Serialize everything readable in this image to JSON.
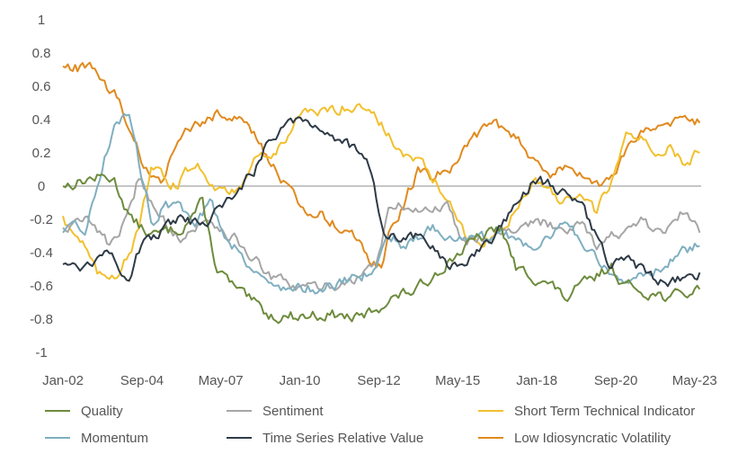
{
  "chart_data": {
    "type": "line",
    "title": "",
    "xlabel": "",
    "ylabel": "",
    "ylim": [
      -1,
      1
    ],
    "xlim": [
      2002.0,
      2023.55
    ],
    "y_ticks": [
      1,
      0.8,
      0.6,
      0.4,
      0.2,
      0,
      -0.2,
      -0.4,
      -0.6,
      -0.8,
      -1
    ],
    "y_tick_labels": [
      "1",
      "0.8",
      "0.6",
      "0.4",
      "0.2",
      "0",
      "-0.2",
      "-0.4",
      "-0.6",
      "-0.8",
      "-1"
    ],
    "x_ticks": [
      {
        "label": "Jan-02",
        "t": 2002.0
      },
      {
        "label": "Sep-04",
        "t": 2004.67
      },
      {
        "label": "May-07",
        "t": 2007.33
      },
      {
        "label": "Jan-10",
        "t": 2010.0
      },
      {
        "label": "Sep-12",
        "t": 2012.67
      },
      {
        "label": "May-15",
        "t": 2015.33
      },
      {
        "label": "Jan-18",
        "t": 2018.0
      },
      {
        "label": "Sep-20",
        "t": 2020.67
      },
      {
        "label": "May-23",
        "t": 2023.33
      }
    ],
    "legend_position": "bottom",
    "series": [
      {
        "name": "Quality",
        "color": "#6E8B3D",
        "t": [
          2002.0,
          2003.0,
          2003.7,
          2004.3,
          2005.0,
          2006.0,
          2006.7,
          2007.2,
          2008.0,
          2009.0,
          2010.0,
          2011.0,
          2012.0,
          2012.5,
          2013.0,
          2014.0,
          2015.0,
          2015.5,
          2016.0,
          2016.8,
          2017.3,
          2018.0,
          2018.5,
          2019.0,
          2019.5,
          2020.0,
          2020.5,
          2021.0,
          2021.5,
          2022.0,
          2022.5,
          2023.0,
          2023.5
        ],
        "values": [
          0.0,
          0.05,
          0.05,
          -0.2,
          -0.3,
          -0.25,
          -0.1,
          -0.5,
          -0.65,
          -0.78,
          -0.78,
          -0.77,
          -0.8,
          -0.75,
          -0.68,
          -0.62,
          -0.45,
          -0.38,
          -0.32,
          -0.25,
          -0.5,
          -0.55,
          -0.6,
          -0.68,
          -0.6,
          -0.55,
          -0.48,
          -0.6,
          -0.62,
          -0.65,
          -0.67,
          -0.65,
          -0.62
        ]
      },
      {
        "name": "Sentiment",
        "color": "#A6A6A6",
        "t": [
          2002.0,
          2003.0,
          2003.5,
          2004.2,
          2004.6,
          2005.2,
          2006.0,
          2007.0,
          2008.0,
          2009.0,
          2010.0,
          2011.0,
          2012.0,
          2012.6,
          2013.0,
          2013.5,
          2014.0,
          2015.0,
          2015.5,
          2016.5,
          2017.0,
          2018.0,
          2019.0,
          2019.5,
          2020.0,
          2020.5,
          2021.0,
          2021.5,
          2022.0,
          2022.5,
          2023.0,
          2023.5
        ],
        "values": [
          -0.25,
          -0.2,
          -0.35,
          -0.2,
          0.08,
          -0.2,
          -0.3,
          -0.2,
          -0.35,
          -0.55,
          -0.62,
          -0.6,
          -0.55,
          -0.45,
          -0.15,
          -0.12,
          -0.15,
          -0.12,
          -0.32,
          -0.3,
          -0.25,
          -0.22,
          -0.25,
          -0.2,
          -0.35,
          -0.3,
          -0.28,
          -0.22,
          -0.28,
          -0.25,
          -0.15,
          -0.28
        ]
      },
      {
        "name": "Short Term Technical Indicator",
        "color": "#F2C02E",
        "t": [
          2002.0,
          2002.7,
          2003.2,
          2003.8,
          2004.5,
          2005.0,
          2005.8,
          2006.5,
          2007.2,
          2007.8,
          2008.5,
          2009.0,
          2009.5,
          2010.0,
          2011.0,
          2012.0,
          2012.5,
          2013.0,
          2013.5,
          2014.0,
          2014.5,
          2015.0,
          2015.5,
          2016.0,
          2017.0,
          2017.5,
          2018.0,
          2018.5,
          2019.0,
          2019.5,
          2020.0,
          2020.5,
          2021.0,
          2021.5,
          2022.0,
          2022.5,
          2023.0,
          2023.5
        ],
        "values": [
          -0.18,
          -0.35,
          -0.55,
          -0.52,
          -0.3,
          0.1,
          0.0,
          0.15,
          0.0,
          -0.05,
          0.2,
          0.15,
          0.3,
          0.42,
          0.45,
          0.5,
          0.45,
          0.3,
          0.18,
          0.15,
          0.05,
          -0.1,
          -0.28,
          -0.35,
          -0.25,
          -0.05,
          0.05,
          -0.05,
          -0.1,
          -0.05,
          -0.15,
          0.0,
          0.3,
          0.32,
          0.2,
          0.22,
          0.15,
          0.2
        ]
      },
      {
        "name": "Momentum",
        "color": "#7FAFC0",
        "t": [
          2002.0,
          2002.8,
          2003.3,
          2003.8,
          2004.2,
          2004.6,
          2005.0,
          2005.5,
          2006.0,
          2006.5,
          2007.0,
          2007.5,
          2008.0,
          2008.5,
          2009.0,
          2010.0,
          2011.0,
          2012.0,
          2012.5,
          2013.0,
          2013.5,
          2014.0,
          2014.5,
          2015.0,
          2016.0,
          2017.0,
          2018.0,
          2018.5,
          2019.0,
          2019.5,
          2020.0,
          2020.5,
          2021.0,
          2021.5,
          2022.0,
          2022.5,
          2023.0,
          2023.5
        ],
        "values": [
          -0.28,
          -0.25,
          0.1,
          0.4,
          0.45,
          0.1,
          -0.2,
          -0.1,
          -0.15,
          -0.2,
          -0.1,
          -0.3,
          -0.4,
          -0.5,
          -0.6,
          -0.62,
          -0.6,
          -0.55,
          -0.5,
          -0.3,
          -0.35,
          -0.3,
          -0.25,
          -0.3,
          -0.32,
          -0.3,
          -0.35,
          -0.28,
          -0.25,
          -0.3,
          -0.45,
          -0.55,
          -0.6,
          -0.5,
          -0.5,
          -0.45,
          -0.38,
          -0.36
        ]
      },
      {
        "name": "Time Series Relative Value",
        "color": "#2E3A46",
        "t": [
          2002.0,
          2003.0,
          2003.5,
          2004.2,
          2004.8,
          2005.2,
          2006.0,
          2006.8,
          2007.5,
          2008.0,
          2008.5,
          2009.0,
          2009.5,
          2010.0,
          2011.0,
          2012.0,
          2012.4,
          2012.8,
          2013.0,
          2013.5,
          2014.0,
          2014.5,
          2015.0,
          2015.5,
          2016.0,
          2016.5,
          2017.0,
          2017.5,
          2018.0,
          2018.5,
          2019.0,
          2019.5,
          2020.0,
          2020.5,
          2021.0,
          2021.5,
          2022.0,
          2022.5,
          2023.0,
          2023.5
        ],
        "values": [
          -0.47,
          -0.47,
          -0.35,
          -0.55,
          -0.3,
          -0.3,
          -0.2,
          -0.25,
          -0.1,
          0.0,
          0.1,
          0.3,
          0.38,
          0.42,
          0.32,
          0.2,
          0.1,
          -0.25,
          -0.3,
          -0.32,
          -0.3,
          -0.35,
          -0.5,
          -0.48,
          -0.4,
          -0.35,
          -0.2,
          -0.05,
          0.05,
          0.0,
          -0.05,
          -0.1,
          -0.3,
          -0.5,
          -0.45,
          -0.5,
          -0.55,
          -0.6,
          -0.55,
          -0.52
        ]
      },
      {
        "name": "Low Idiosyncratic Volatility",
        "color": "#E08A1E",
        "t": [
          2002.0,
          2002.5,
          2003.0,
          2003.3,
          2003.8,
          2004.3,
          2004.8,
          2005.3,
          2005.8,
          2006.3,
          2007.0,
          2007.5,
          2008.0,
          2008.5,
          2009.0,
          2009.5,
          2010.0,
          2010.5,
          2011.0,
          2011.5,
          2012.0,
          2012.4,
          2012.8,
          2013.0,
          2013.5,
          2014.0,
          2014.5,
          2015.0,
          2015.5,
          2016.0,
          2016.5,
          2017.0,
          2017.5,
          2018.0,
          2018.5,
          2019.0,
          2019.5,
          2020.0,
          2020.5,
          2021.0,
          2021.5,
          2022.0,
          2022.5,
          2023.0,
          2023.5
        ],
        "values": [
          0.72,
          0.71,
          0.72,
          0.6,
          0.55,
          0.3,
          0.1,
          0.05,
          0.2,
          0.35,
          0.42,
          0.45,
          0.4,
          0.3,
          0.15,
          0.0,
          -0.1,
          -0.15,
          -0.2,
          -0.28,
          -0.3,
          -0.45,
          -0.48,
          -0.3,
          -0.1,
          0.1,
          0.05,
          0.1,
          0.2,
          0.3,
          0.38,
          0.32,
          0.25,
          0.12,
          0.05,
          0.15,
          0.05,
          0.0,
          0.05,
          0.2,
          0.35,
          0.3,
          0.38,
          0.42,
          0.38
        ]
      }
    ]
  }
}
